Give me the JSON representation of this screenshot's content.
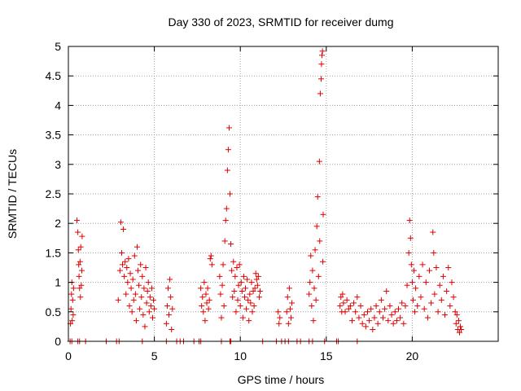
{
  "chart_data": {
    "type": "scatter",
    "title": "Day 330 of 2023, SRMTID for receiver dumg",
    "xlabel": "GPS time / hours",
    "ylabel": "SRMTID / TECUs",
    "xlim": [
      0,
      25
    ],
    "ylim": [
      0,
      5
    ],
    "xticks": [
      0,
      5,
      10,
      15,
      20
    ],
    "xtick_labels": [
      "0",
      "5",
      "10",
      "15",
      "20"
    ],
    "yticks": [
      0,
      0.5,
      1,
      1.5,
      2,
      2.5,
      3,
      3.5,
      4,
      4.5,
      5
    ],
    "ytick_labels": [
      "0",
      "0.5",
      "1",
      "1.5",
      "2",
      "2.5",
      "3",
      "3.5",
      "4",
      "4.5",
      "5"
    ],
    "grid": true,
    "marker": "+",
    "color": "#e00000",
    "series": [
      {
        "name": "SRMTID",
        "points": [
          [
            0.12,
            0.3
          ],
          [
            0.15,
            0.55
          ],
          [
            0.18,
            0.8
          ],
          [
            0.2,
            1.0
          ],
          [
            0.22,
            0.35
          ],
          [
            0.25,
            0.7
          ],
          [
            0.28,
            0.45
          ],
          [
            0.3,
            0.9
          ],
          [
            0.5,
            2.05
          ],
          [
            0.55,
            1.85
          ],
          [
            0.58,
            1.55
          ],
          [
            0.6,
            1.3
          ],
          [
            0.62,
            1.1
          ],
          [
            0.65,
            0.9
          ],
          [
            0.68,
            1.35
          ],
          [
            0.7,
            0.75
          ],
          [
            0.72,
            1.6
          ],
          [
            0.75,
            0.95
          ],
          [
            0.78,
            1.2
          ],
          [
            0.8,
            1.78
          ],
          [
            2.9,
            0.7
          ],
          [
            3.0,
            1.2
          ],
          [
            3.05,
            2.02
          ],
          [
            3.1,
            1.5
          ],
          [
            3.15,
            1.3
          ],
          [
            3.2,
            1.9
          ],
          [
            3.25,
            1.1
          ],
          [
            3.3,
            1.35
          ],
          [
            3.35,
            0.8
          ],
          [
            3.4,
            1.25
          ],
          [
            3.45,
            1.0
          ],
          [
            3.5,
            1.4
          ],
          [
            3.55,
            0.6
          ],
          [
            3.6,
            1.15
          ],
          [
            3.65,
            0.9
          ],
          [
            3.7,
            0.5
          ],
          [
            3.75,
            1.05
          ],
          [
            3.8,
            0.7
          ],
          [
            3.85,
            1.45
          ],
          [
            3.9,
            0.8
          ],
          [
            3.95,
            0.35
          ],
          [
            4.0,
            1.6
          ],
          [
            4.05,
            1.2
          ],
          [
            4.1,
            0.95
          ],
          [
            4.15,
            0.55
          ],
          [
            4.2,
            1.3
          ],
          [
            4.25,
            0.75
          ],
          [
            4.3,
            1.1
          ],
          [
            4.35,
            0.45
          ],
          [
            4.4,
            0.9
          ],
          [
            4.45,
            0.25
          ],
          [
            4.5,
            1.25
          ],
          [
            4.55,
            0.65
          ],
          [
            4.6,
            0.85
          ],
          [
            4.65,
            1.0
          ],
          [
            4.7,
            0.5
          ],
          [
            4.75,
            0.75
          ],
          [
            4.8,
            0.6
          ],
          [
            4.85,
            0.9
          ],
          [
            4.9,
            0.4
          ],
          [
            4.95,
            0.7
          ],
          [
            5.0,
            0.55
          ],
          [
            5.7,
            0.3
          ],
          [
            5.75,
            0.6
          ],
          [
            5.8,
            0.9
          ],
          [
            5.85,
            0.45
          ],
          [
            5.9,
            1.05
          ],
          [
            5.95,
            0.75
          ],
          [
            6.0,
            0.2
          ],
          [
            6.05,
            0.55
          ],
          [
            7.7,
            0.9
          ],
          [
            7.75,
            0.6
          ],
          [
            7.8,
            0.75
          ],
          [
            7.85,
            0.5
          ],
          [
            7.9,
            1.0
          ],
          [
            7.95,
            0.35
          ],
          [
            8.0,
            0.8
          ],
          [
            8.05,
            0.65
          ],
          [
            8.1,
            0.9
          ],
          [
            8.15,
            0.55
          ],
          [
            8.2,
            0.7
          ],
          [
            8.25,
            1.4
          ],
          [
            8.3,
            1.45
          ],
          [
            8.35,
            1.3
          ],
          [
            8.8,
            1.1
          ],
          [
            8.85,
            0.8
          ],
          [
            8.9,
            0.4
          ],
          [
            8.95,
            0.95
          ],
          [
            9.0,
            1.3
          ],
          [
            9.05,
            0.6
          ],
          [
            9.1,
            1.7
          ],
          [
            9.15,
            2.05
          ],
          [
            9.2,
            2.25
          ],
          [
            9.25,
            2.9
          ],
          [
            9.3,
            3.25
          ],
          [
            9.35,
            3.62
          ],
          [
            9.4,
            2.5
          ],
          [
            9.45,
            1.65
          ],
          [
            9.5,
            1.2
          ],
          [
            9.55,
            0.75
          ],
          [
            9.6,
            1.35
          ],
          [
            9.65,
            0.85
          ],
          [
            9.7,
            1.1
          ],
          [
            9.75,
            0.5
          ],
          [
            9.8,
            1.25
          ],
          [
            9.85,
            0.7
          ],
          [
            9.9,
            0.95
          ],
          [
            9.95,
            1.3
          ],
          [
            10.0,
            0.6
          ],
          [
            10.05,
            1.0
          ],
          [
            10.1,
            0.85
          ],
          [
            10.15,
            0.4
          ],
          [
            10.2,
            1.1
          ],
          [
            10.25,
            0.75
          ],
          [
            10.3,
            0.9
          ],
          [
            10.35,
            0.55
          ],
          [
            10.4,
            1.05
          ],
          [
            10.45,
            0.7
          ],
          [
            10.5,
            0.35
          ],
          [
            10.55,
            0.8
          ],
          [
            10.6,
            0.65
          ],
          [
            10.65,
            1.0
          ],
          [
            10.7,
            0.5
          ],
          [
            10.75,
            0.85
          ],
          [
            10.8,
            0.6
          ],
          [
            10.85,
            0.9
          ],
          [
            10.9,
            1.15
          ],
          [
            10.95,
            1.05
          ],
          [
            11.0,
            0.95
          ],
          [
            11.05,
            1.1
          ],
          [
            11.1,
            0.75
          ],
          [
            11.15,
            0.85
          ],
          [
            12.2,
            0.5
          ],
          [
            12.25,
            0.3
          ],
          [
            12.3,
            0.4
          ],
          [
            12.7,
            0.5
          ],
          [
            12.75,
            0.75
          ],
          [
            12.8,
            0.3
          ],
          [
            12.85,
            0.9
          ],
          [
            12.9,
            0.55
          ],
          [
            12.95,
            0.4
          ],
          [
            13.0,
            0.65
          ],
          [
            14.0,
            0.8
          ],
          [
            14.05,
            1.0
          ],
          [
            14.1,
            1.45
          ],
          [
            14.15,
            0.6
          ],
          [
            14.2,
            1.2
          ],
          [
            14.25,
            0.35
          ],
          [
            14.3,
            0.9
          ],
          [
            14.35,
            1.55
          ],
          [
            14.4,
            0.7
          ],
          [
            14.45,
            1.95
          ],
          [
            14.5,
            2.45
          ],
          [
            14.55,
            1.1
          ],
          [
            14.6,
            3.05
          ],
          [
            14.62,
            1.7
          ],
          [
            14.65,
            4.2
          ],
          [
            14.7,
            4.45
          ],
          [
            14.72,
            4.7
          ],
          [
            14.75,
            4.85
          ],
          [
            14.78,
            4.92
          ],
          [
            14.8,
            1.35
          ],
          [
            14.82,
            2.15
          ],
          [
            15.8,
            0.6
          ],
          [
            15.85,
            0.75
          ],
          [
            15.9,
            0.5
          ],
          [
            15.95,
            0.8
          ],
          [
            16.0,
            0.65
          ],
          [
            16.1,
            0.5
          ],
          [
            16.2,
            0.7
          ],
          [
            16.3,
            0.55
          ],
          [
            16.4,
            0.6
          ],
          [
            16.5,
            0.35
          ],
          [
            16.6,
            0.65
          ],
          [
            16.7,
            0.5
          ],
          [
            16.8,
            0.75
          ],
          [
            16.9,
            0.4
          ],
          [
            17.0,
            0.6
          ],
          [
            17.1,
            0.3
          ],
          [
            17.2,
            0.45
          ],
          [
            17.3,
            0.25
          ],
          [
            17.4,
            0.5
          ],
          [
            17.5,
            0.35
          ],
          [
            17.6,
            0.55
          ],
          [
            17.7,
            0.2
          ],
          [
            17.8,
            0.4
          ],
          [
            17.9,
            0.6
          ],
          [
            18.0,
            0.3
          ],
          [
            18.1,
            0.5
          ],
          [
            18.2,
            0.7
          ],
          [
            18.3,
            0.4
          ],
          [
            18.4,
            0.55
          ],
          [
            18.5,
            0.85
          ],
          [
            18.6,
            0.35
          ],
          [
            18.7,
            0.6
          ],
          [
            18.8,
            0.45
          ],
          [
            18.9,
            0.3
          ],
          [
            19.0,
            0.5
          ],
          [
            19.1,
            0.35
          ],
          [
            19.2,
            0.55
          ],
          [
            19.3,
            0.4
          ],
          [
            19.4,
            0.65
          ],
          [
            19.5,
            0.3
          ],
          [
            19.6,
            0.6
          ],
          [
            19.7,
            0.95
          ],
          [
            19.8,
            1.5
          ],
          [
            19.85,
            2.05
          ],
          [
            19.9,
            1.75
          ],
          [
            19.95,
            1.3
          ],
          [
            20.0,
            1.0
          ],
          [
            20.05,
            0.7
          ],
          [
            20.1,
            1.2
          ],
          [
            20.15,
            0.5
          ],
          [
            20.2,
            0.9
          ],
          [
            20.3,
            0.6
          ],
          [
            20.4,
            1.1
          ],
          [
            20.5,
            0.75
          ],
          [
            20.6,
            1.3
          ],
          [
            20.7,
            0.55
          ],
          [
            20.8,
            1.0
          ],
          [
            20.9,
            0.4
          ],
          [
            21.0,
            1.2
          ],
          [
            21.1,
            0.65
          ],
          [
            21.2,
            1.85
          ],
          [
            21.25,
            1.5
          ],
          [
            21.3,
            0.8
          ],
          [
            21.4,
            1.25
          ],
          [
            21.5,
            0.5
          ],
          [
            21.6,
            0.95
          ],
          [
            21.7,
            0.7
          ],
          [
            21.8,
            1.1
          ],
          [
            21.9,
            0.45
          ],
          [
            22.0,
            0.85
          ],
          [
            22.1,
            1.25
          ],
          [
            22.2,
            0.6
          ],
          [
            22.3,
            1.0
          ],
          [
            22.4,
            0.75
          ],
          [
            22.5,
            0.5
          ],
          [
            22.55,
            0.3
          ],
          [
            22.6,
            0.45
          ],
          [
            22.65,
            0.2
          ],
          [
            22.7,
            0.35
          ],
          [
            22.75,
            0.15
          ],
          [
            22.8,
            0.25
          ],
          [
            22.85,
            0.2
          ],
          [
            0.1,
            0.0
          ],
          [
            0.2,
            0.0
          ],
          [
            0.55,
            0.0
          ],
          [
            0.65,
            0.0
          ],
          [
            1.0,
            0.0
          ],
          [
            2.2,
            0.0
          ],
          [
            2.8,
            0.0
          ],
          [
            2.95,
            0.0
          ],
          [
            4.3,
            0.0
          ],
          [
            5.7,
            0.0
          ],
          [
            6.3,
            0.0
          ],
          [
            6.5,
            0.0
          ],
          [
            6.7,
            0.0
          ],
          [
            7.3,
            0.0
          ],
          [
            7.6,
            0.0
          ],
          [
            7.7,
            0.0
          ],
          [
            8.9,
            0.0
          ],
          [
            9.4,
            0.0
          ],
          [
            9.45,
            0.0
          ],
          [
            11.3,
            0.0
          ],
          [
            12.1,
            0.0
          ],
          [
            12.4,
            0.0
          ],
          [
            12.6,
            0.0
          ],
          [
            12.8,
            0.0
          ],
          [
            13.3,
            0.0
          ],
          [
            13.5,
            0.0
          ],
          [
            14.0,
            0.0
          ],
          [
            14.2,
            0.0
          ],
          [
            14.9,
            0.0
          ],
          [
            15.6,
            0.0
          ],
          [
            15.7,
            0.0
          ],
          [
            16.8,
            0.0
          ]
        ]
      }
    ]
  }
}
